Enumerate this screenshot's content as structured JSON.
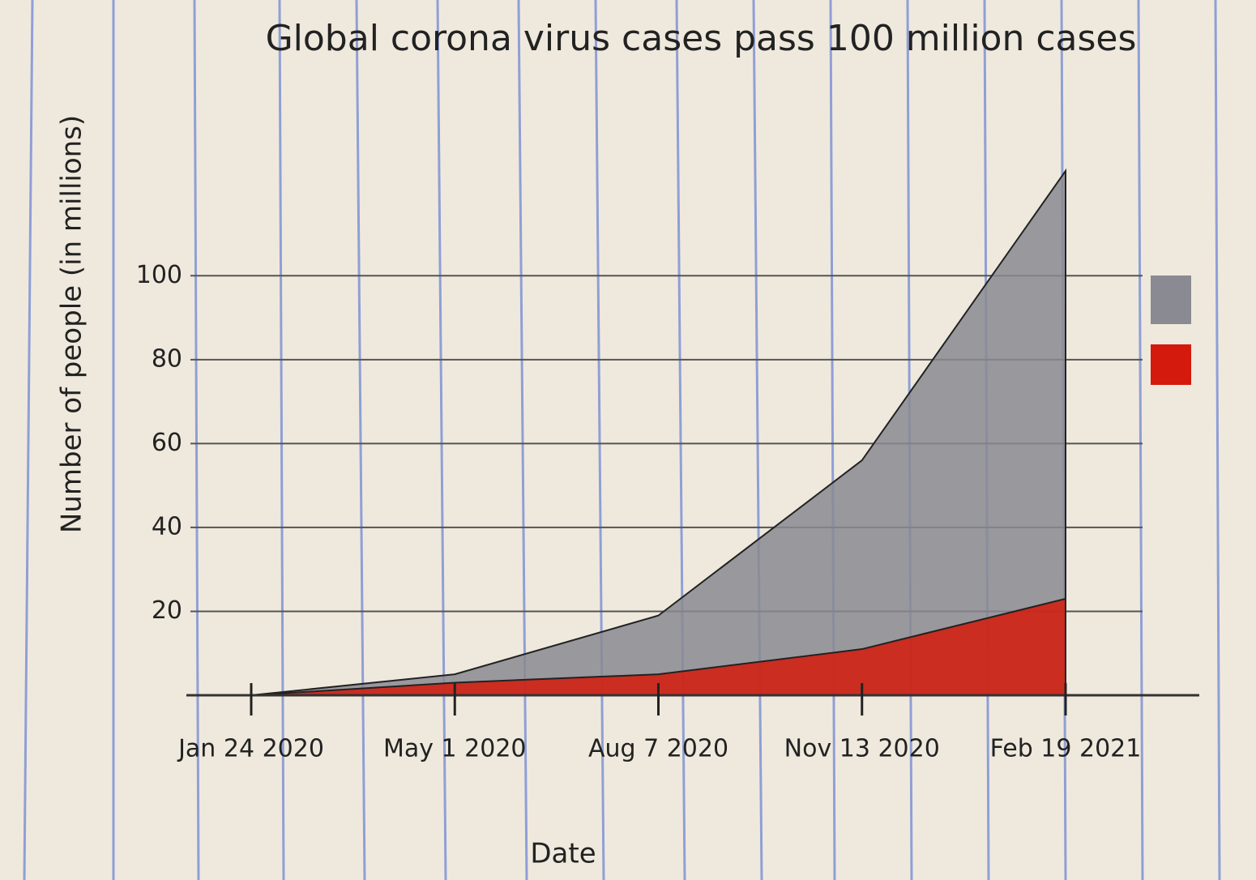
{
  "chart_data": {
    "type": "area",
    "title": "Global corona virus cases pass 100 million cases",
    "x_label": "Date",
    "y_label": "Number of people (in millions)",
    "categories": [
      "Jan 24 2020",
      "May 1 2020",
      "Aug 7 2020",
      "Nov 13 2020",
      "Feb 19 2021"
    ],
    "series": [
      {
        "color": "#8a8a92",
        "values": [
          0,
          5,
          19,
          56,
          125
        ]
      },
      {
        "color": "#d41a0c",
        "values": [
          0,
          3,
          5,
          11,
          23
        ]
      }
    ],
    "ylim": [
      0,
      130
    ],
    "yticks": [
      20,
      40,
      60,
      80,
      100
    ],
    "grid": true
  }
}
